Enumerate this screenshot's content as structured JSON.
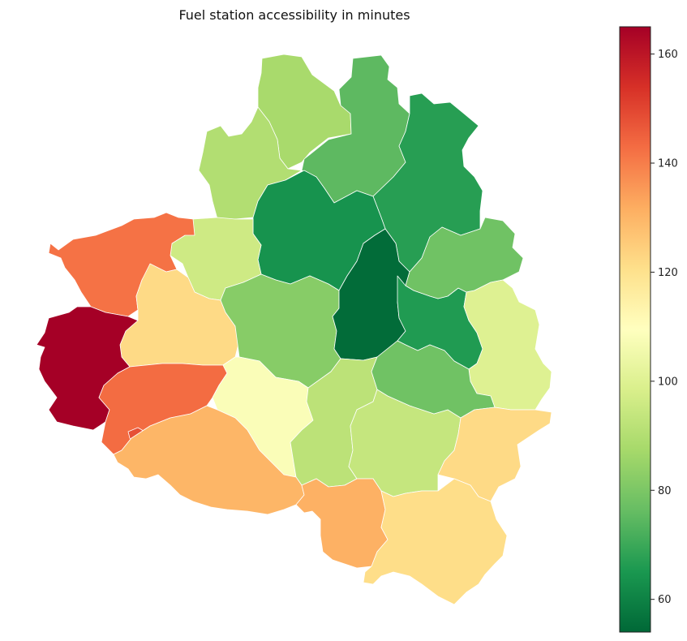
{
  "title": "Fuel station accessibility in minutes",
  "colorbar": {
    "colormap": "RdYlGn_r",
    "min": 54,
    "max": 165,
    "ticks": [
      60,
      80,
      100,
      120,
      140,
      160
    ],
    "tick_labels": [
      "60",
      "80",
      "100",
      "120",
      "140",
      "160"
    ]
  },
  "chart_data": {
    "type": "choropleth",
    "title": "Fuel station accessibility in minutes",
    "value_range": [
      54,
      165
    ],
    "regions": [
      {
        "id": "north-top",
        "value": 88
      },
      {
        "id": "north-east-top",
        "value": 75
      },
      {
        "id": "north-west-upper",
        "value": 90
      },
      {
        "id": "north-center",
        "value": 76
      },
      {
        "id": "north-east",
        "value": 67
      },
      {
        "id": "center-north",
        "value": 64
      },
      {
        "id": "west-upper-center",
        "value": 96
      },
      {
        "id": "north-west-coast",
        "value": 142
      },
      {
        "id": "west-center",
        "value": 122
      },
      {
        "id": "center-west",
        "value": 82
      },
      {
        "id": "center",
        "value": 55
      },
      {
        "id": "center-east",
        "value": 66
      },
      {
        "id": "east-upper",
        "value": 78
      },
      {
        "id": "east",
        "value": 100
      },
      {
        "id": "far-west",
        "value": 165
      },
      {
        "id": "west-lower",
        "value": 143
      },
      {
        "id": "small-enclave",
        "value": 148
      },
      {
        "id": "center-south-west",
        "value": 108
      },
      {
        "id": "center-south",
        "value": 92
      },
      {
        "id": "south-center-east",
        "value": 94
      },
      {
        "id": "east-center-south",
        "value": 78
      },
      {
        "id": "south-east",
        "value": 122
      },
      {
        "id": "south-west",
        "value": 130
      },
      {
        "id": "south-center",
        "value": 131
      },
      {
        "id": "south",
        "value": 121
      }
    ]
  }
}
